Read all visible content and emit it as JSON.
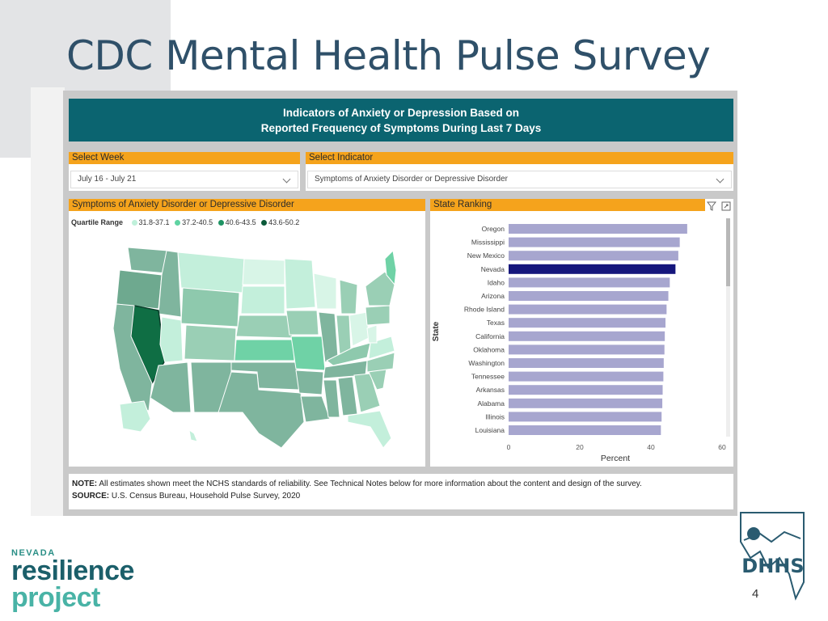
{
  "slide": {
    "title": "CDC Mental Health Pulse Survey",
    "page_number": "4"
  },
  "dashboard": {
    "header_line1": "Indicators of Anxiety or Depression Based on",
    "header_line2": "Reported Frequency of Symptoms During Last 7 Days",
    "week_label": "Select Week",
    "week_value": "July 16 - July 21",
    "indicator_label": "Select Indicator",
    "indicator_value": "Symptoms of Anxiety Disorder or Depressive Disorder",
    "map_title": "Symptoms of Anxiety Disorder or Depressive Disorder",
    "ranking_title": "State Ranking",
    "legend": {
      "title": "Quartile Range",
      "items": [
        {
          "label": "31.8-37.1",
          "color": "#bff0da"
        },
        {
          "label": "37.2-40.5",
          "color": "#5fd3a2"
        },
        {
          "label": "40.6-43.5",
          "color": "#1f9464"
        },
        {
          "label": "43.6-50.2",
          "color": "#0b5a3a"
        }
      ]
    },
    "note_label": "NOTE:",
    "note_text": "All estimates shown meet the NCHS standards of reliability. See Technical Notes below for more information about the content and design of the survey.",
    "source_label": "SOURCE:",
    "source_text": "U.S. Census Bureau, Household Pulse Survey, 2020"
  },
  "chart_data": {
    "type": "bar",
    "orientation": "horizontal",
    "ylabel": "State",
    "xlabel": "Percent",
    "xlim": [
      0,
      60
    ],
    "xticks": [
      0,
      20,
      40,
      60
    ],
    "categories": [
      "Oregon",
      "Mississippi",
      "New Mexico",
      "Nevada",
      "Idaho",
      "Arizona",
      "Rhode Island",
      "Texas",
      "California",
      "Oklahoma",
      "Washington",
      "Tennessee",
      "Arkansas",
      "Alabama",
      "Illinois",
      "Louisiana"
    ],
    "values": [
      50.2,
      48.1,
      47.7,
      46.9,
      45.3,
      44.9,
      44.4,
      44.1,
      43.9,
      43.8,
      43.6,
      43.5,
      43.3,
      43.2,
      43.0,
      42.8
    ],
    "highlight": "Nevada",
    "colors": {
      "bar": "#a7a6cf",
      "highlight": "#15167c"
    }
  },
  "branding": {
    "left_logo_top": "NEVADA",
    "left_logo_mid": "resilience",
    "left_logo_bottom": "project",
    "right_logo_text": "DHHS"
  }
}
